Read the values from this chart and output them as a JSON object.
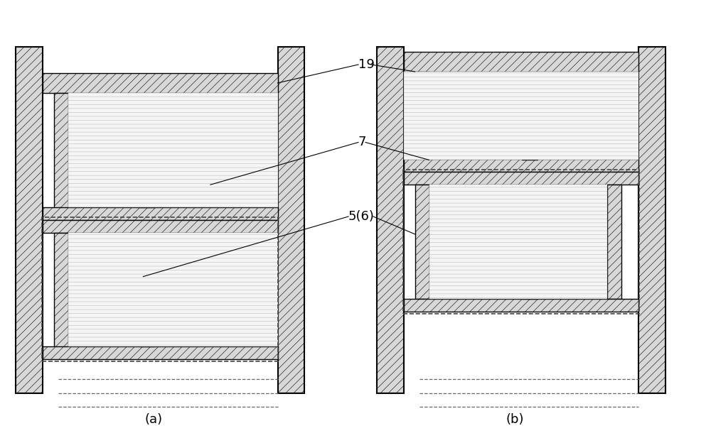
{
  "bg_color": "#ffffff",
  "line_color": "#000000",
  "hatch_solid": "///",
  "hatch_liquid": "---",
  "label_19": "19",
  "label_7": "7",
  "label_56": "5(6)",
  "label_a": "(a)",
  "label_b": "(b)",
  "fig_width": 10.0,
  "fig_height": 6.1,
  "hatch_fc": "#d8d8d8",
  "liquid_fc": "#f5f5f5",
  "lw": 1.0,
  "hatch_lw": 0.5,
  "pillar_lw": 1.5
}
